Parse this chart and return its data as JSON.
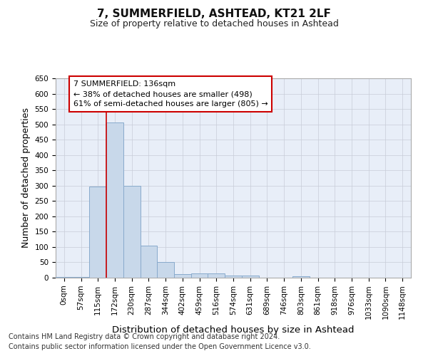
{
  "title": "7, SUMMERFIELD, ASHTEAD, KT21 2LF",
  "subtitle": "Size of property relative to detached houses in Ashtead",
  "xlabel": "Distribution of detached houses by size in Ashtead",
  "ylabel": "Number of detached properties",
  "footnote1": "Contains HM Land Registry data © Crown copyright and database right 2024.",
  "footnote2": "Contains public sector information licensed under the Open Government Licence v3.0.",
  "categories": [
    "0sqm",
    "57sqm",
    "115sqm",
    "172sqm",
    "230sqm",
    "287sqm",
    "344sqm",
    "402sqm",
    "459sqm",
    "516sqm",
    "574sqm",
    "631sqm",
    "689sqm",
    "746sqm",
    "803sqm",
    "861sqm",
    "918sqm",
    "976sqm",
    "1033sqm",
    "1090sqm",
    "1148sqm"
  ],
  "values": [
    2,
    2,
    298,
    507,
    300,
    105,
    52,
    12,
    13,
    13,
    8,
    6,
    1,
    0,
    4,
    1,
    0,
    0,
    1,
    0,
    1
  ],
  "bar_color": "#c8d8ea",
  "bar_edge_color": "#88aacc",
  "red_line_x": 2.5,
  "annotation_line1": "7 SUMMERFIELD: 136sqm",
  "annotation_line2": "← 38% of detached houses are smaller (498)",
  "annotation_line3": "61% of semi-detached houses are larger (805) →",
  "annotation_box_color": "#ffffff",
  "annotation_border_color": "#cc0000",
  "ylim": [
    0,
    650
  ],
  "yticks": [
    0,
    50,
    100,
    150,
    200,
    250,
    300,
    350,
    400,
    450,
    500,
    550,
    600,
    650
  ],
  "grid_color": "#c8ccd8",
  "background_color": "#e8eef8",
  "title_fontsize": 11,
  "subtitle_fontsize": 9,
  "axis_label_fontsize": 9,
  "tick_fontsize": 7.5,
  "annotation_fontsize": 8,
  "footnote_fontsize": 7
}
